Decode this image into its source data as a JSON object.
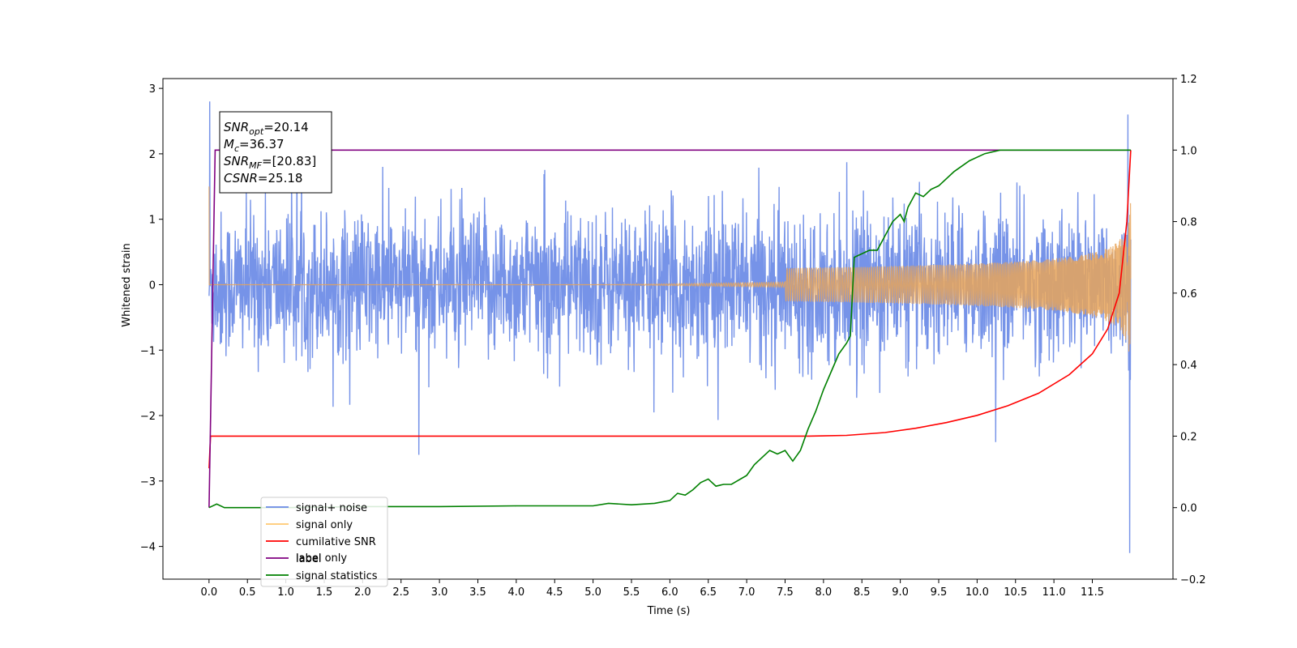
{
  "chart_data": {
    "type": "line",
    "xlabel": "Time (s)",
    "ylabel_left": "Whitened strain",
    "ylabel_right": "",
    "xlim": [
      -0.6,
      12.55
    ],
    "ylim_left": [
      -4.5,
      3.15
    ],
    "ylim_right": [
      -0.2,
      1.2
    ],
    "x_ticks": [
      0.0,
      0.5,
      1.0,
      1.5,
      2.0,
      2.5,
      3.0,
      3.5,
      4.0,
      4.5,
      5.0,
      5.5,
      6.0,
      6.5,
      7.0,
      7.5,
      8.0,
      8.5,
      9.0,
      9.5,
      10.0,
      10.5,
      11.0,
      11.5
    ],
    "x_tick_labels": [
      "0.0",
      "0.5",
      "1.0",
      "1.5",
      "2.0",
      "2.5",
      "3.0",
      "3.5",
      "4.0",
      "4.5",
      "5.0",
      "5.5",
      "6.0",
      "6.5",
      "7.0",
      "7.5",
      "8.0",
      "8.5",
      "9.0",
      "9.5",
      "10.0",
      "10.5",
      "11.0",
      "11.5"
    ],
    "y_left_ticks": [
      3,
      2,
      1,
      0,
      -1,
      -2,
      -3,
      -4
    ],
    "y_left_tick_labels": [
      "3",
      "2",
      "1",
      "0",
      "−1",
      "−2",
      "−3",
      "−4"
    ],
    "y_right_ticks": [
      1.2,
      1.0,
      0.8,
      0.6,
      0.4,
      0.2,
      0.0,
      -0.2
    ],
    "y_right_tick_labels": [
      "1.2",
      "1.0",
      "0.8",
      "0.6",
      "0.4",
      "0.2",
      "0.0",
      "−0.2"
    ],
    "grid": false,
    "legend_placement": "lower-left",
    "legend": [
      {
        "label": "signal+ noise",
        "color": "#6a8ae6"
      },
      {
        "label": "signal only",
        "color": "#ffc870"
      },
      {
        "label": "cumilative SNR",
        "color": "#ff0000"
      },
      {
        "label": "label",
        "color": "#800080"
      },
      {
        "label": "signal statistics",
        "color": "#008000"
      }
    ],
    "legend_ghost_text": "label only",
    "annotation": [
      {
        "base": "SNR",
        "sub": "opt",
        "value": "=20.14"
      },
      {
        "base": "M",
        "sub": "c",
        "value": "=36.37"
      },
      {
        "base": "SNR",
        "sub": "MF",
        "value": "=[20.83]"
      },
      {
        "base": "CSNR",
        "sub": "",
        "value": "=25.18"
      }
    ],
    "series": [
      {
        "name": "signal+ noise",
        "axis": "left",
        "color": "#6a8ae6",
        "description_points": {
          "x_start": 0.0,
          "x_end": 12.0,
          "noise_sigma": 0.55,
          "spike_at_start": 2.8,
          "spike_at_end_min": -4.1,
          "spike_at_end_max": 2.6
        }
      },
      {
        "name": "signal only",
        "axis": "left",
        "color": "#e8a55a",
        "chirp": {
          "start_amp": 0.0,
          "end_amp": 1.3,
          "x_start": 0.0,
          "x_end": 12.0,
          "start_val": 1.5
        }
      },
      {
        "name": "cumilative SNR",
        "axis": "right",
        "color": "#ff0000",
        "x": [
          0.0,
          0.02,
          7.8,
          8.3,
          8.8,
          9.2,
          9.6,
          10.0,
          10.4,
          10.8,
          11.2,
          11.5,
          11.7,
          11.85,
          11.95,
          12.0
        ],
        "values": [
          0.11,
          0.2,
          0.2,
          0.202,
          0.21,
          0.222,
          0.238,
          0.258,
          0.285,
          0.32,
          0.372,
          0.43,
          0.5,
          0.6,
          0.8,
          1.0
        ]
      },
      {
        "name": "label",
        "axis": "right",
        "color": "#800080",
        "x": [
          0.0,
          0.08,
          12.0
        ],
        "values": [
          0.0,
          1.0,
          1.0
        ]
      },
      {
        "name": "signal statistics",
        "axis": "right",
        "color": "#008000",
        "x": [
          0.0,
          0.1,
          0.2,
          0.5,
          1.0,
          2.0,
          3.0,
          4.0,
          5.0,
          5.2,
          5.5,
          5.8,
          6.0,
          6.1,
          6.2,
          6.3,
          6.4,
          6.5,
          6.6,
          6.7,
          6.8,
          7.0,
          7.1,
          7.3,
          7.4,
          7.5,
          7.6,
          7.7,
          7.8,
          7.9,
          8.0,
          8.1,
          8.2,
          8.3,
          8.35,
          8.4,
          8.6,
          8.7,
          8.8,
          8.9,
          9.0,
          9.05,
          9.1,
          9.2,
          9.3,
          9.4,
          9.5,
          9.7,
          9.9,
          10.1,
          10.3,
          10.5,
          11.0,
          11.5,
          12.0
        ],
        "values": [
          0.0,
          0.01,
          0.0,
          0.0,
          0.0,
          0.003,
          0.003,
          0.005,
          0.005,
          0.012,
          0.008,
          0.012,
          0.02,
          0.04,
          0.035,
          0.05,
          0.07,
          0.08,
          0.06,
          0.065,
          0.065,
          0.09,
          0.12,
          0.16,
          0.15,
          0.16,
          0.13,
          0.16,
          0.22,
          0.27,
          0.33,
          0.38,
          0.43,
          0.46,
          0.48,
          0.7,
          0.72,
          0.72,
          0.76,
          0.8,
          0.82,
          0.8,
          0.84,
          0.88,
          0.87,
          0.89,
          0.9,
          0.94,
          0.97,
          0.99,
          1.0,
          1.0,
          1.0,
          1.0,
          1.0
        ]
      }
    ]
  }
}
